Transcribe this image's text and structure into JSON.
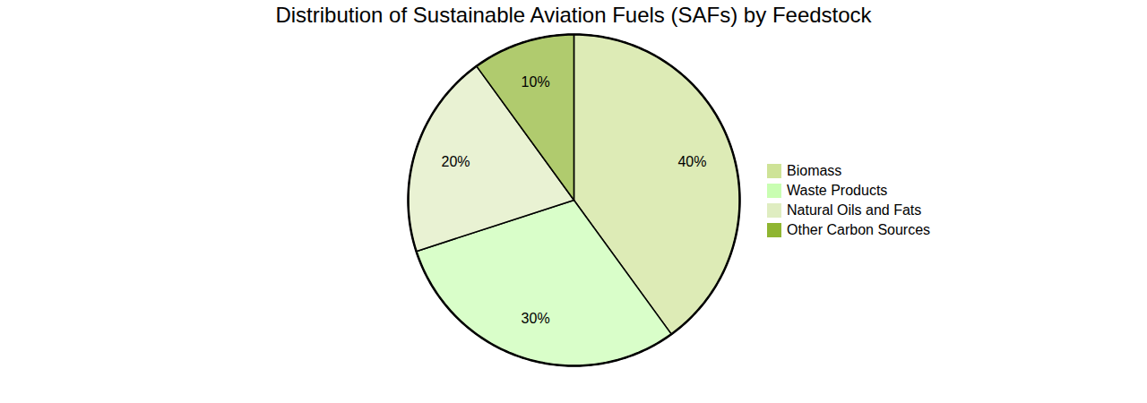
{
  "chart_data": {
    "type": "pie",
    "title": "Distribution of Sustainable Aviation Fuels (SAFs) by Feedstock",
    "categories": [
      "Biomass",
      "Waste Products",
      "Natural Oils and Fats",
      "Other Carbon Sources"
    ],
    "values": [
      40,
      30,
      20,
      10
    ],
    "value_labels": [
      "40%",
      "30%",
      "20%",
      "10%"
    ],
    "colors": [
      "#cee397",
      "#c9feb2",
      "#dfedc1",
      "#8fb531"
    ],
    "data_labels": true,
    "legend": "right"
  }
}
